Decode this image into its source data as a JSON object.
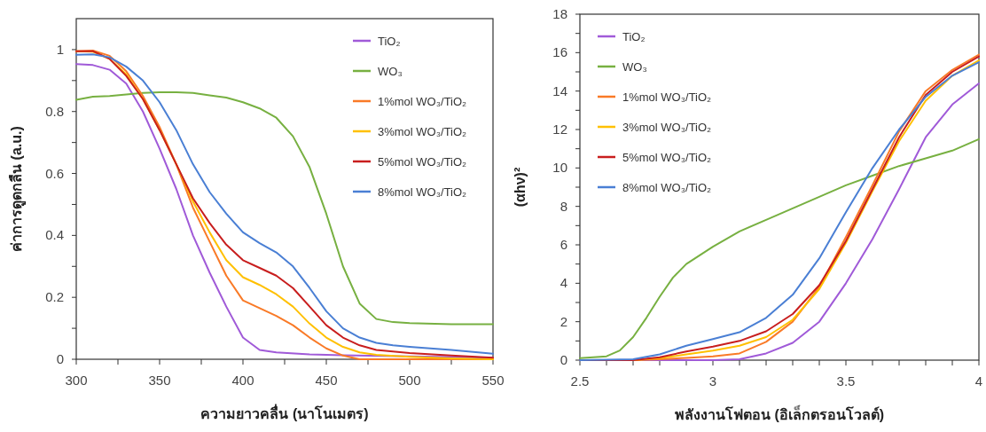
{
  "chart_data": [
    {
      "type": "line",
      "xlabel": "ความยาวคลื่น (นาโนเมตร)",
      "ylabel": "ค่าการดูดกลืน (a.u.)",
      "xlim": [
        300,
        550
      ],
      "ylim": [
        0,
        1.1
      ],
      "xticks": [
        300,
        {
          "value": 325,
          "label": null
        },
        350,
        {
          "value": 375,
          "label": null
        },
        400,
        {
          "value": 425,
          "label": null
        },
        450,
        {
          "value": 475,
          "label": null
        },
        500,
        {
          "value": 525,
          "label": null
        },
        550
      ],
      "yticks": [
        0,
        {
          "value": 0.1,
          "label": null
        },
        0.2,
        {
          "value": 0.3,
          "label": null
        },
        0.4,
        {
          "value": 0.5,
          "label": null
        },
        0.6,
        {
          "value": 0.7,
          "label": null
        },
        0.8,
        {
          "value": 0.9,
          "label": null
        },
        1
      ],
      "legend": "top right",
      "grid": false,
      "marker": "none",
      "line_style": "solid",
      "series": [
        {
          "name": "TiO₂",
          "color": "#a05ad8",
          "x": [
            300,
            310,
            320,
            330,
            340,
            350,
            360,
            370,
            380,
            390,
            400,
            410,
            420,
            440,
            460,
            550
          ],
          "values": [
            0.953,
            0.95,
            0.935,
            0.89,
            0.8,
            0.68,
            0.55,
            0.4,
            0.28,
            0.17,
            0.07,
            0.03,
            0.022,
            0.016,
            0.013,
            0.005
          ]
        },
        {
          "name": "WO₃",
          "color": "#77b041",
          "x": [
            300,
            310,
            320,
            330,
            340,
            350,
            360,
            370,
            380,
            390,
            400,
            410,
            420,
            430,
            440,
            450,
            460,
            470,
            480,
            490,
            500,
            525,
            550
          ],
          "values": [
            0.838,
            0.848,
            0.85,
            0.855,
            0.86,
            0.862,
            0.862,
            0.86,
            0.852,
            0.845,
            0.83,
            0.81,
            0.78,
            0.72,
            0.62,
            0.47,
            0.3,
            0.18,
            0.13,
            0.12,
            0.117,
            0.113,
            0.113
          ]
        },
        {
          "name": "1%mol WO₃/TiO₂",
          "color": "#f97a27",
          "x": [
            300,
            310,
            320,
            330,
            340,
            350,
            360,
            370,
            380,
            390,
            400,
            410,
            420,
            430,
            440,
            450,
            460,
            470,
            480,
            550
          ],
          "values": [
            0.995,
            0.997,
            0.98,
            0.93,
            0.85,
            0.75,
            0.63,
            0.49,
            0.38,
            0.27,
            0.19,
            0.165,
            0.14,
            0.11,
            0.07,
            0.035,
            0.012,
            0,
            0,
            0
          ]
        },
        {
          "name": "3%mol WO₃/TiO₂",
          "color": "#ffc000",
          "x": [
            300,
            310,
            320,
            330,
            340,
            350,
            360,
            370,
            380,
            390,
            400,
            410,
            420,
            430,
            440,
            450,
            460,
            470,
            480,
            500,
            525,
            550
          ],
          "values": [
            0.995,
            0.993,
            0.97,
            0.92,
            0.84,
            0.74,
            0.63,
            0.51,
            0.41,
            0.32,
            0.265,
            0.24,
            0.21,
            0.17,
            0.115,
            0.07,
            0.04,
            0.022,
            0.014,
            0.008,
            0.003,
            0
          ]
        },
        {
          "name": "5%mol WO₃/TiO₂",
          "color": "#c81e1e",
          "x": [
            300,
            310,
            320,
            330,
            340,
            350,
            360,
            370,
            380,
            390,
            400,
            410,
            420,
            430,
            440,
            450,
            460,
            470,
            480,
            490,
            500,
            525,
            550
          ],
          "values": [
            0.995,
            0.995,
            0.97,
            0.915,
            0.84,
            0.74,
            0.63,
            0.52,
            0.44,
            0.37,
            0.32,
            0.295,
            0.27,
            0.23,
            0.17,
            0.11,
            0.07,
            0.045,
            0.03,
            0.025,
            0.02,
            0.012,
            0.005
          ]
        },
        {
          "name": "8%mol WO₃/TiO₂",
          "color": "#4a7fd4",
          "x": [
            300,
            310,
            320,
            330,
            340,
            350,
            360,
            370,
            380,
            390,
            400,
            410,
            420,
            430,
            440,
            450,
            460,
            470,
            480,
            490,
            500,
            525,
            550
          ],
          "values": [
            0.983,
            0.985,
            0.975,
            0.945,
            0.9,
            0.83,
            0.74,
            0.63,
            0.54,
            0.47,
            0.41,
            0.375,
            0.345,
            0.3,
            0.23,
            0.155,
            0.1,
            0.07,
            0.053,
            0.045,
            0.04,
            0.03,
            0.018
          ]
        }
      ]
    },
    {
      "type": "line",
      "xlabel": "พลังงานโฟตอน (อิเล็กตรอนโวลต์)",
      "ylabel": "(αhν)²",
      "xlim": [
        2.5,
        4
      ],
      "ylim": [
        0,
        18
      ],
      "xticks": [
        2.5,
        {
          "value": 2.6,
          "label": null
        },
        {
          "value": 2.7,
          "label": null
        },
        {
          "value": 2.8,
          "label": null
        },
        {
          "value": 2.9,
          "label": null
        },
        3,
        {
          "value": 3.1,
          "label": null
        },
        {
          "value": 3.2,
          "label": null
        },
        {
          "value": 3.3,
          "label": null
        },
        {
          "value": 3.4,
          "label": null
        },
        3.5,
        {
          "value": 3.6,
          "label": null
        },
        {
          "value": 3.7,
          "label": null
        },
        {
          "value": 3.8,
          "label": null
        },
        {
          "value": 3.9,
          "label": null
        },
        4
      ],
      "yticks": [
        0,
        {
          "value": 1,
          "label": null
        },
        2,
        {
          "value": 3,
          "label": null
        },
        4,
        {
          "value": 5,
          "label": null
        },
        6,
        {
          "value": 7,
          "label": null
        },
        8,
        {
          "value": 9,
          "label": null
        },
        10,
        {
          "value": 11,
          "label": null
        },
        12,
        {
          "value": 13,
          "label": null
        },
        14,
        {
          "value": 15,
          "label": null
        },
        16,
        {
          "value": 17,
          "label": null
        },
        18
      ],
      "legend": "top left",
      "grid": false,
      "marker": "none",
      "line_style": "solid",
      "series": [
        {
          "name": "TiO₂",
          "color": "#a05ad8",
          "x": [
            2.5,
            3.0,
            3.1,
            3.2,
            3.3,
            3.4,
            3.5,
            3.6,
            3.7,
            3.8,
            3.9,
            4.0
          ],
          "values": [
            0,
            0,
            0.05,
            0.35,
            0.9,
            2.0,
            4.0,
            6.3,
            8.9,
            11.6,
            13.3,
            14.4
          ]
        },
        {
          "name": "WO₃",
          "color": "#77b041",
          "x": [
            2.5,
            2.6,
            2.65,
            2.7,
            2.75,
            2.8,
            2.85,
            2.9,
            3.0,
            3.1,
            3.2,
            3.3,
            3.4,
            3.5,
            3.6,
            3.7,
            3.8,
            3.9,
            4.0
          ],
          "values": [
            0.1,
            0.2,
            0.5,
            1.2,
            2.2,
            3.3,
            4.3,
            5.0,
            5.9,
            6.7,
            7.3,
            7.9,
            8.5,
            9.1,
            9.6,
            10.1,
            10.5,
            10.9,
            11.5
          ]
        },
        {
          "name": "1%mol WO₃/TiO₂",
          "color": "#f97a27",
          "x": [
            2.5,
            2.7,
            2.8,
            2.9,
            3.0,
            3.1,
            3.2,
            3.3,
            3.4,
            3.5,
            3.6,
            3.7,
            3.8,
            3.9,
            4.0
          ],
          "values": [
            0,
            0,
            0.05,
            0.12,
            0.2,
            0.35,
            0.95,
            2.0,
            3.8,
            6.4,
            9.1,
            11.9,
            14.0,
            15.1,
            15.9
          ]
        },
        {
          "name": "3%mol WO₃/TiO₂",
          "color": "#ffc000",
          "x": [
            2.5,
            2.7,
            2.8,
            2.9,
            3.0,
            3.1,
            3.2,
            3.3,
            3.4,
            3.5,
            3.6,
            3.7,
            3.8,
            3.9,
            4.0
          ],
          "values": [
            0,
            0,
            0.1,
            0.3,
            0.5,
            0.75,
            1.2,
            2.1,
            3.7,
            6.1,
            8.8,
            11.4,
            13.5,
            14.8,
            15.6
          ]
        },
        {
          "name": "5%mol WO₃/TiO₂",
          "color": "#c81e1e",
          "x": [
            2.5,
            2.7,
            2.8,
            2.9,
            3.0,
            3.1,
            3.2,
            3.3,
            3.4,
            3.5,
            3.6,
            3.7,
            3.8,
            3.9,
            4.0
          ],
          "values": [
            0,
            0,
            0.15,
            0.45,
            0.7,
            1.0,
            1.5,
            2.4,
            3.9,
            6.2,
            8.9,
            11.6,
            13.8,
            15.0,
            15.8
          ]
        },
        {
          "name": "8%mol WO₃/TiO₂",
          "color": "#4a7fd4",
          "x": [
            2.5,
            2.7,
            2.8,
            2.9,
            3.0,
            3.1,
            3.2,
            3.3,
            3.4,
            3.5,
            3.6,
            3.7,
            3.8,
            3.9,
            4.0
          ],
          "values": [
            0,
            0.05,
            0.3,
            0.75,
            1.1,
            1.45,
            2.2,
            3.4,
            5.3,
            7.7,
            10.0,
            12.0,
            13.7,
            14.8,
            15.5
          ]
        }
      ]
    }
  ]
}
